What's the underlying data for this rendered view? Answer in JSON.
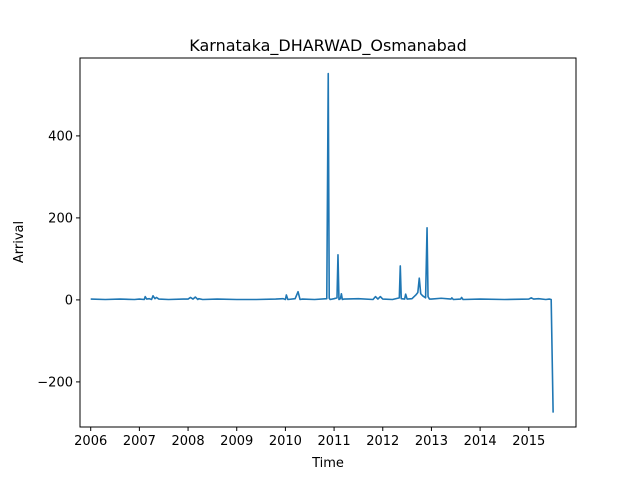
{
  "chart_data": {
    "type": "line",
    "title": "Karnataka_DHARWAD_Osmanabad",
    "xlabel": "Time",
    "ylabel": "Arrival",
    "xlim": [
      2005.78,
      2015.97
    ],
    "ylim": [
      -310,
      590
    ],
    "x_ticks": [
      2006,
      2007,
      2008,
      2009,
      2010,
      2011,
      2012,
      2013,
      2014,
      2015
    ],
    "x_tick_labels": [
      "2006",
      "2007",
      "2008",
      "2009",
      "2010",
      "2011",
      "2012",
      "2013",
      "2014",
      "2015"
    ],
    "y_ticks": [
      -200,
      0,
      200,
      400
    ],
    "y_tick_labels": [
      "−200",
      "0",
      "200",
      "400"
    ],
    "grid": false,
    "legend": "none",
    "color": "#1f77b4",
    "series": [
      {
        "x": [
          2006.0,
          2006.3,
          2006.6,
          2006.9,
          2007.0,
          2007.1,
          2007.12,
          2007.15,
          2007.2,
          2007.25,
          2007.28,
          2007.32,
          2007.35,
          2007.4,
          2007.6,
          2007.9,
          2008.0,
          2008.05,
          2008.1,
          2008.15,
          2008.2,
          2008.22,
          2008.3,
          2008.6,
          2009.0,
          2009.4,
          2009.8,
          2009.95,
          2010.0,
          2010.02,
          2010.05,
          2010.2,
          2010.26,
          2010.3,
          2010.35,
          2010.6,
          2010.85,
          2010.88,
          2010.9,
          2010.92,
          2011.0,
          2011.06,
          2011.08,
          2011.1,
          2011.13,
          2011.15,
          2011.17,
          2011.2,
          2011.5,
          2011.8,
          2011.85,
          2011.9,
          2011.95,
          2012.0,
          2012.2,
          2012.34,
          2012.36,
          2012.38,
          2012.45,
          2012.47,
          2012.5,
          2012.6,
          2012.68,
          2012.72,
          2012.75,
          2012.78,
          2012.82,
          2012.88,
          2012.91,
          2012.93,
          2012.96,
          2013.0,
          2013.2,
          2013.4,
          2013.42,
          2013.45,
          2013.6,
          2013.62,
          2013.65,
          2014.0,
          2014.5,
          2015.0,
          2015.05,
          2015.1,
          2015.2,
          2015.35,
          2015.42,
          2015.46,
          2015.5
        ],
        "y": [
          2,
          1,
          2,
          1,
          2,
          1,
          8,
          2,
          3,
          1,
          10,
          3,
          6,
          2,
          1,
          2,
          2,
          6,
          2,
          7,
          1,
          3,
          1,
          2,
          1,
          1,
          2,
          3,
          1,
          12,
          1,
          3,
          20,
          1,
          2,
          1,
          3,
          552,
          4,
          1,
          3,
          5,
          110,
          1,
          3,
          15,
          1,
          2,
          3,
          1,
          8,
          2,
          8,
          2,
          1,
          5,
          83,
          3,
          2,
          14,
          2,
          3,
          12,
          18,
          53,
          15,
          10,
          5,
          176,
          8,
          2,
          2,
          4,
          2,
          5,
          1,
          2,
          6,
          1,
          2,
          1,
          2,
          5,
          2,
          3,
          1,
          2,
          1,
          -275
        ]
      }
    ]
  }
}
